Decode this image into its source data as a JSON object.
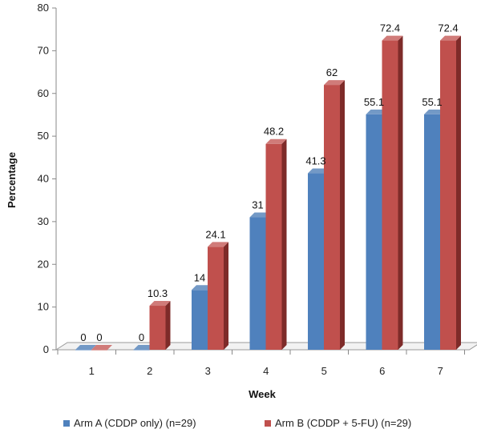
{
  "chart_data": {
    "type": "bar",
    "title": "",
    "xlabel": "Week",
    "ylabel": "Percentage",
    "categories": [
      "1",
      "2",
      "3",
      "4",
      "5",
      "6",
      "7"
    ],
    "ylim": [
      0,
      80
    ],
    "yticks": [
      0,
      10,
      20,
      30,
      40,
      50,
      60,
      70,
      80
    ],
    "grid": false,
    "legend_position": "bottom",
    "style": "3d-clustered-column",
    "series": [
      {
        "name": "Arm A (CDDP only) (n=29)",
        "values": [
          0,
          0,
          14,
          31,
          41.3,
          55.1,
          55.1
        ],
        "labels": [
          "0",
          "0",
          "14",
          "31",
          "41.3",
          "55.1",
          "55.1"
        ],
        "color": "#4F81BD",
        "side_color": "#2C4D75",
        "top_color": "#7399C6"
      },
      {
        "name": "Arm B (CDDP + 5-FU) (n=29)",
        "values": [
          0,
          10.3,
          24.1,
          48.2,
          62,
          72.4,
          72.4
        ],
        "labels": [
          "0",
          "10.3",
          "24.1",
          "48.2",
          "62",
          "72.4",
          "72.4"
        ],
        "color": "#C0504D",
        "side_color": "#7E2B29",
        "top_color": "#D07B79"
      }
    ]
  }
}
